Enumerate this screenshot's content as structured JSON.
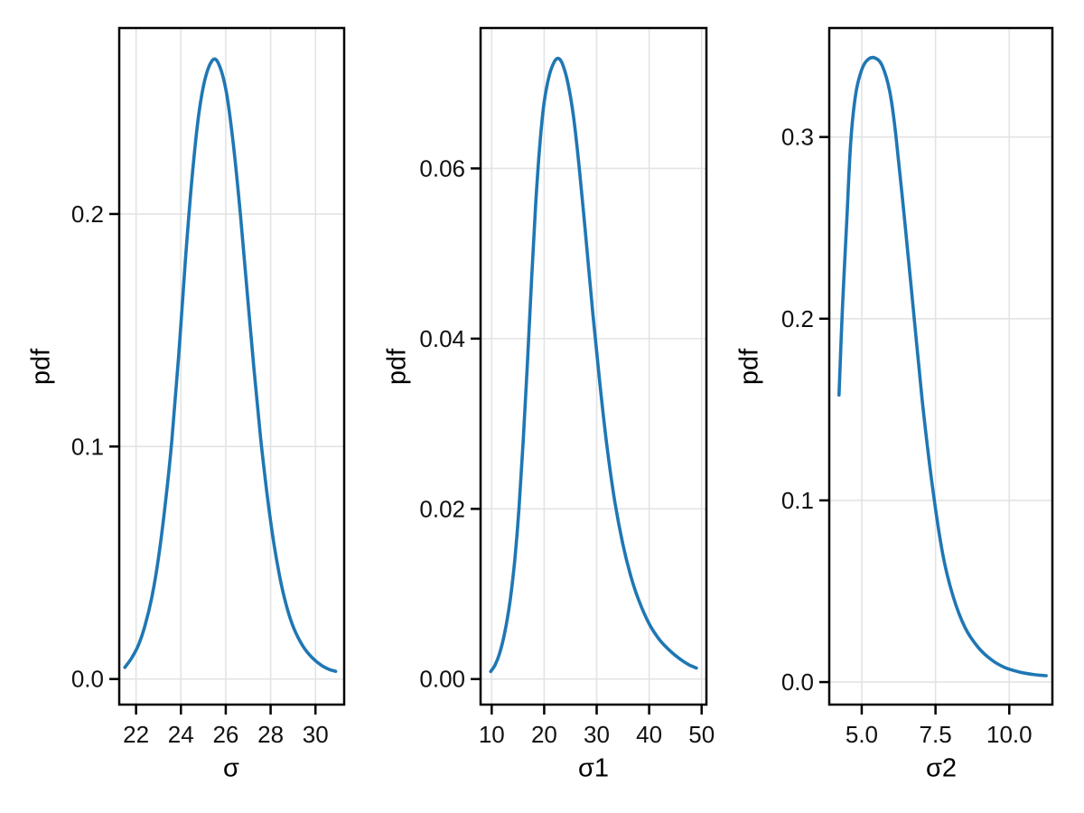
{
  "figure": {
    "background": "#ffffff"
  },
  "style": {
    "line_color": "#1f77b4",
    "grid_color": "#e3e3e3",
    "spine_color": "#000000",
    "tick_color": "#000000",
    "tick_label_color": "#111111",
    "tick_label_size": 26
  },
  "chart_data": [
    {
      "type": "line",
      "title": "",
      "xlabel": "σ",
      "ylabel": "pdf",
      "grid": true,
      "legend": "none",
      "xlim": [
        21.25,
        31.28
      ],
      "ylim": [
        -0.011,
        0.28
      ],
      "xticks": {
        "values": [
          22,
          24,
          26,
          28,
          30
        ],
        "labels": [
          "22",
          "24",
          "26",
          "28",
          "30"
        ]
      },
      "yticks": {
        "values": [
          0.0,
          0.1,
          0.2
        ],
        "labels": [
          "0.0",
          "0.1",
          "0.2"
        ]
      },
      "series": [
        {
          "name": "pdf(σ)",
          "points": [
            [
              21.5,
              0.005
            ],
            [
              21.8,
              0.009
            ],
            [
              22.1,
              0.0145
            ],
            [
              22.4,
              0.023
            ],
            [
              22.7,
              0.035
            ],
            [
              23.0,
              0.052
            ],
            [
              23.3,
              0.075
            ],
            [
              23.6,
              0.103
            ],
            [
              23.9,
              0.139
            ],
            [
              24.2,
              0.18
            ],
            [
              24.5,
              0.216
            ],
            [
              24.8,
              0.243
            ],
            [
              25.1,
              0.259
            ],
            [
              25.45,
              0.2665
            ],
            [
              25.75,
              0.263
            ],
            [
              26.05,
              0.251
            ],
            [
              26.35,
              0.229
            ],
            [
              26.65,
              0.2
            ],
            [
              26.95,
              0.167
            ],
            [
              27.25,
              0.134
            ],
            [
              27.55,
              0.104
            ],
            [
              27.85,
              0.079
            ],
            [
              28.15,
              0.058
            ],
            [
              28.45,
              0.042
            ],
            [
              28.75,
              0.03
            ],
            [
              29.05,
              0.0215
            ],
            [
              29.45,
              0.014
            ],
            [
              29.85,
              0.0092
            ],
            [
              30.25,
              0.006
            ],
            [
              30.6,
              0.0042
            ],
            [
              30.9,
              0.0033
            ]
          ]
        }
      ]
    },
    {
      "type": "line",
      "title": "",
      "xlabel": "σ1",
      "ylabel": "pdf",
      "grid": true,
      "legend": "none",
      "xlim": [
        7.88,
        50.91
      ],
      "ylim": [
        -0.003,
        0.0765
      ],
      "xticks": {
        "values": [
          10,
          20,
          30,
          40,
          50
        ],
        "labels": [
          "10",
          "20",
          "30",
          "40",
          "50"
        ]
      },
      "yticks": {
        "values": [
          0.0,
          0.02,
          0.04,
          0.06
        ],
        "labels": [
          "0.00",
          "0.02",
          "0.04",
          "0.06"
        ]
      },
      "series": [
        {
          "name": "pdf(σ1)",
          "points": [
            [
              9.8,
              0.0009
            ],
            [
              10.6,
              0.0016
            ],
            [
              11.5,
              0.003
            ],
            [
              12.5,
              0.0055
            ],
            [
              13.5,
              0.0092
            ],
            [
              14.4,
              0.014
            ],
            [
              15.2,
              0.02
            ],
            [
              16.0,
              0.028
            ],
            [
              16.8,
              0.037
            ],
            [
              17.6,
              0.047
            ],
            [
              18.4,
              0.056
            ],
            [
              19.2,
              0.063
            ],
            [
              20.0,
              0.0678
            ],
            [
              21.0,
              0.071
            ],
            [
              22.0,
              0.0726
            ],
            [
              22.8,
              0.0729
            ],
            [
              23.6,
              0.0721
            ],
            [
              24.6,
              0.0698
            ],
            [
              25.6,
              0.066
            ],
            [
              26.7,
              0.06
            ],
            [
              28.0,
              0.0515
            ],
            [
              29.3,
              0.0428
            ],
            [
              30.6,
              0.0348
            ],
            [
              32.0,
              0.0272
            ],
            [
              33.5,
              0.0207
            ],
            [
              35.0,
              0.0158
            ],
            [
              36.5,
              0.0121
            ],
            [
              38.0,
              0.0093
            ],
            [
              40.0,
              0.0065
            ],
            [
              42.0,
              0.0046
            ],
            [
              44.0,
              0.0033
            ],
            [
              46.0,
              0.0023
            ],
            [
              47.5,
              0.0017
            ],
            [
              49.0,
              0.0013
            ]
          ]
        }
      ]
    },
    {
      "type": "line",
      "title": "",
      "xlabel": "σ2",
      "ylabel": "pdf",
      "grid": true,
      "legend": "none",
      "xlim": [
        3.9,
        11.46
      ],
      "ylim": [
        -0.0124,
        0.36
      ],
      "xticks": {
        "values": [
          5.0,
          7.5,
          10.0
        ],
        "labels": [
          "5.0",
          "7.5",
          "10.0"
        ]
      },
      "yticks": {
        "values": [
          0.0,
          0.1,
          0.2,
          0.3
        ],
        "labels": [
          "0.0",
          "0.1",
          "0.2",
          "0.3"
        ]
      },
      "series": [
        {
          "name": "pdf(σ2)",
          "points": [
            [
              4.23,
              0.158
            ],
            [
              4.35,
              0.207
            ],
            [
              4.5,
              0.256
            ],
            [
              4.63,
              0.298
            ],
            [
              4.8,
              0.324
            ],
            [
              5.0,
              0.337
            ],
            [
              5.2,
              0.3425
            ],
            [
              5.45,
              0.3435
            ],
            [
              5.7,
              0.339
            ],
            [
              5.95,
              0.325
            ],
            [
              6.15,
              0.302
            ],
            [
              6.45,
              0.255
            ],
            [
              6.75,
              0.205
            ],
            [
              7.05,
              0.155
            ],
            [
              7.4,
              0.107
            ],
            [
              7.75,
              0.07
            ],
            [
              8.1,
              0.047
            ],
            [
              8.5,
              0.03
            ],
            [
              8.95,
              0.019
            ],
            [
              9.4,
              0.0122
            ],
            [
              9.85,
              0.008
            ],
            [
              10.35,
              0.0055
            ],
            [
              10.8,
              0.0042
            ],
            [
              11.25,
              0.0035
            ]
          ]
        }
      ]
    }
  ]
}
